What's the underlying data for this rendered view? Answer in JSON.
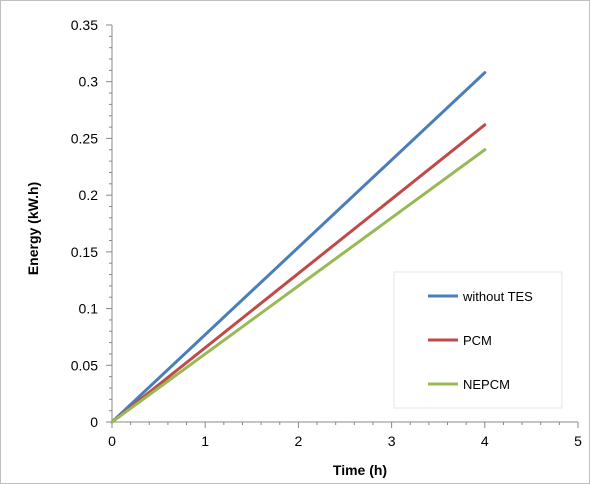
{
  "chart_data": {
    "type": "line",
    "title": "",
    "xlabel": "Time (h)",
    "ylabel": "Energy (kW.h)",
    "xlim": [
      0,
      5
    ],
    "ylim": [
      0,
      0.35
    ],
    "x_ticks": [
      "0",
      "1",
      "2",
      "3",
      "4",
      "5"
    ],
    "y_ticks": [
      "0",
      "0.05",
      "0.1",
      "0.15",
      "0.2",
      "0.25",
      "0.3",
      "0.35"
    ],
    "grid": false,
    "legend_position": "bottom-right",
    "series": [
      {
        "name": "without TES",
        "color": "#4a7ebb",
        "x": [
          0,
          4
        ],
        "y": [
          0,
          0.308
        ]
      },
      {
        "name": "PCM",
        "color": "#be4b48",
        "x": [
          0,
          4
        ],
        "y": [
          0,
          0.262
        ]
      },
      {
        "name": "NEPCM",
        "color": "#98b954",
        "x": [
          0,
          4
        ],
        "y": [
          0,
          0.24
        ]
      }
    ]
  }
}
